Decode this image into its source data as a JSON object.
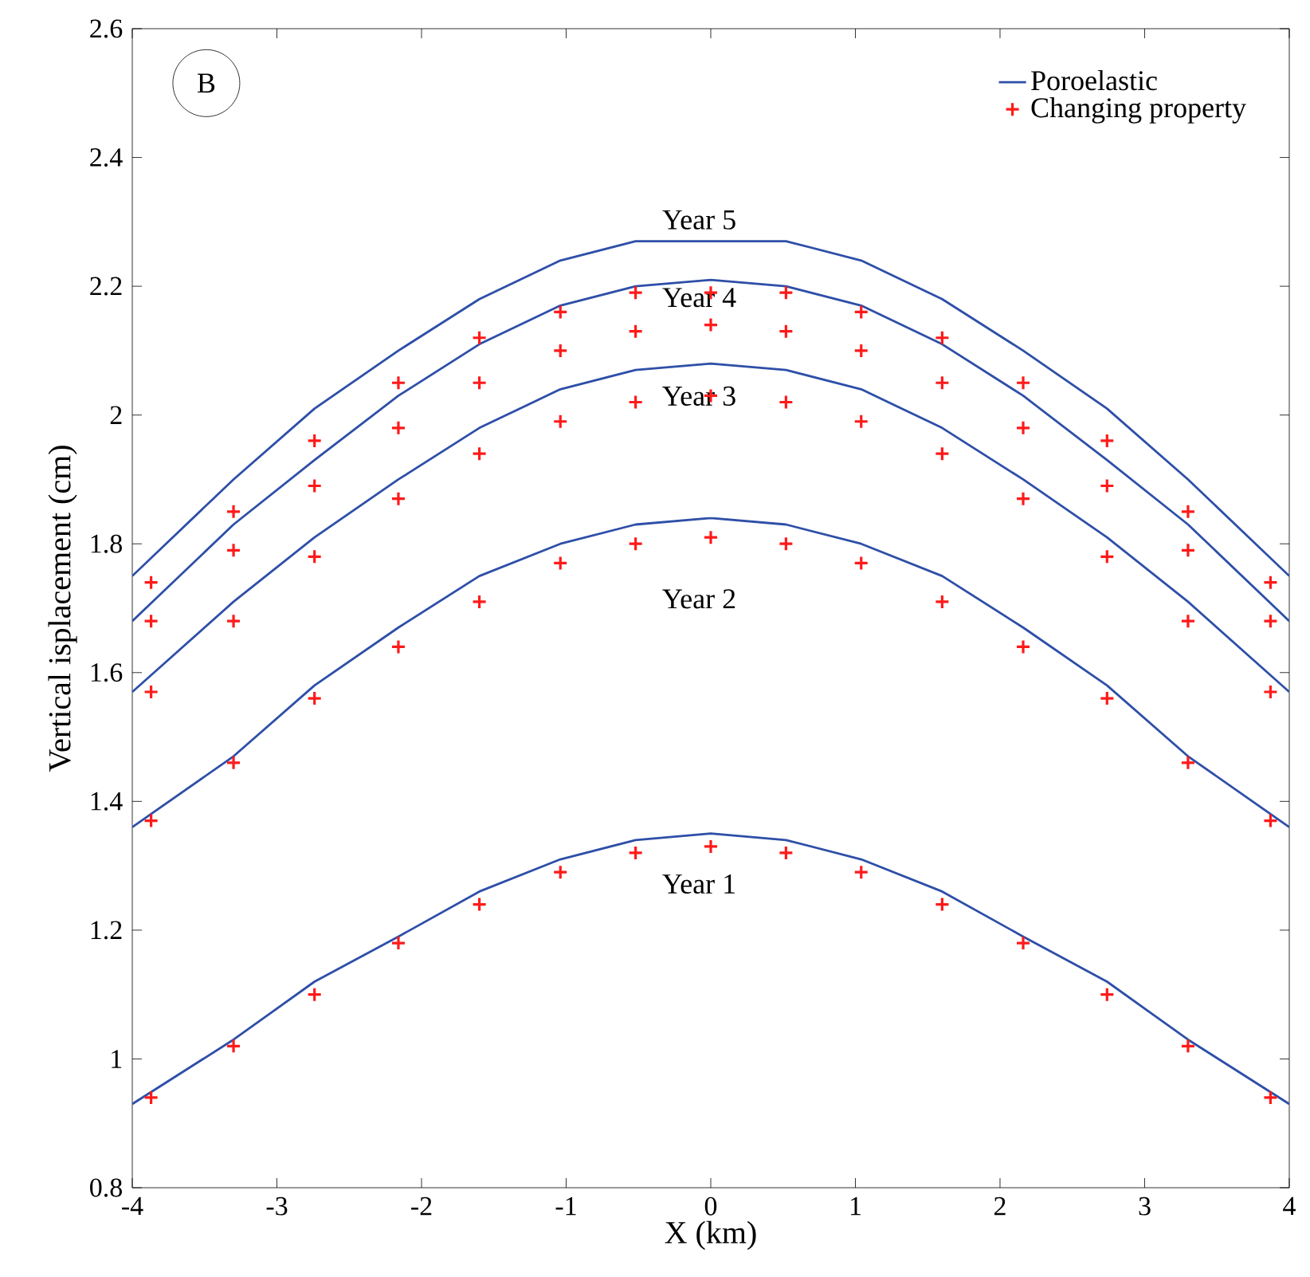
{
  "chart_data": {
    "type": "line",
    "xlabel": "X (km)",
    "ylabel": "Vertical isplacement (cm)",
    "xlim": [
      -4,
      4
    ],
    "xticks": [
      -4,
      -3,
      -2,
      -1,
      0,
      1,
      2,
      3,
      4
    ],
    "ylim": [
      0.8,
      2.6
    ],
    "yticks": [
      0.8,
      1,
      1.2,
      1.4,
      1.6,
      1.8,
      2,
      2.2,
      2.4,
      2.6
    ],
    "legend": "top right",
    "annotations": [
      "B",
      "Year 5",
      "Year 4",
      "Year 3",
      "Year 2",
      "Year 1"
    ],
    "series": [
      {
        "name": "Poroelastic",
        "marker": "none",
        "color": "#2e4fa8",
        "x": [
          -4,
          -3.3,
          -2.74,
          -2.16,
          -1.6,
          -1.04,
          -0.52,
          0,
          0.52,
          1.04,
          1.6,
          2.16,
          2.74,
          3.3,
          4
        ],
        "values": [
          0.93,
          1.03,
          1.12,
          1.19,
          1.26,
          1.31,
          1.34,
          1.35,
          1.34,
          1.31,
          1.26,
          1.19,
          1.12,
          1.03,
          0.93
        ]
      },
      {
        "type": "line",
        "marker": "none",
        "color": "#2e4fa8",
        "x": [
          -4,
          -3.3,
          -2.74,
          -2.16,
          -1.6,
          -1.04,
          -0.52,
          0,
          0.52,
          1.04,
          1.6,
          2.16,
          2.74,
          3.3,
          4
        ],
        "values": [
          1.36,
          1.47,
          1.58,
          1.67,
          1.75,
          1.8,
          1.83,
          1.84,
          1.83,
          1.8,
          1.75,
          1.67,
          1.58,
          1.47,
          1.36
        ]
      },
      {
        "type": "line",
        "marker": "none",
        "color": "#2e4fa8",
        "x": [
          -4,
          -3.3,
          -2.74,
          -2.16,
          -1.6,
          -1.04,
          -0.52,
          0,
          0.52,
          1.04,
          1.6,
          2.16,
          2.74,
          3.3,
          4
        ],
        "values": [
          1.57,
          1.71,
          1.81,
          1.9,
          1.98,
          2.04,
          2.07,
          2.08,
          2.07,
          2.04,
          1.98,
          1.9,
          1.81,
          1.71,
          1.57
        ]
      },
      {
        "type": "line",
        "marker": "none",
        "color": "#2e4fa8",
        "x": [
          -4,
          -3.3,
          -2.74,
          -2.16,
          -1.6,
          -1.04,
          -0.52,
          0,
          0.52,
          1.04,
          1.6,
          2.16,
          2.74,
          3.3,
          4
        ],
        "values": [
          1.68,
          1.83,
          1.93,
          2.03,
          2.11,
          2.17,
          2.2,
          2.21,
          2.2,
          2.17,
          2.11,
          2.03,
          1.93,
          1.83,
          1.68
        ]
      },
      {
        "type": "line",
        "marker": "none",
        "color": "#2e4fa8",
        "x": [
          -4,
          -3.3,
          -2.74,
          -2.16,
          -1.6,
          -1.04,
          -0.52,
          0,
          0.52,
          1.04,
          1.6,
          2.16,
          2.74,
          3.3,
          4
        ],
        "values": [
          1.75,
          1.9,
          2.01,
          2.1,
          2.18,
          2.24,
          2.27,
          2.27,
          2.27,
          2.24,
          2.18,
          2.1,
          2.01,
          1.9,
          1.75
        ]
      },
      {
        "name": "Changing property",
        "type": "scatter",
        "marker": "cross",
        "color": "#ff1a1a",
        "x": [
          -3.87,
          -3.3,
          -2.74,
          -2.16,
          -1.6,
          -1.04,
          -0.52,
          0,
          0.52,
          1.04,
          1.6,
          2.16,
          2.74,
          3.3,
          3.87
        ],
        "values": [
          0.94,
          1.02,
          1.1,
          1.18,
          1.24,
          1.29,
          1.32,
          1.33,
          1.32,
          1.29,
          1.24,
          1.18,
          1.1,
          1.02,
          0.94
        ]
      },
      {
        "type": "scatter",
        "marker": "cross",
        "color": "#ff1a1a",
        "x": [
          -3.87,
          -3.3,
          -2.74,
          -2.16,
          -1.6,
          -1.04,
          -0.52,
          0,
          0.52,
          1.04,
          1.6,
          2.16,
          2.74,
          3.3,
          3.87
        ],
        "values": [
          1.37,
          1.46,
          1.56,
          1.64,
          1.71,
          1.77,
          1.8,
          1.81,
          1.8,
          1.77,
          1.71,
          1.64,
          1.56,
          1.46,
          1.37
        ]
      },
      {
        "type": "scatter",
        "marker": "cross",
        "color": "#ff1a1a",
        "x": [
          -3.87,
          -3.3,
          -2.74,
          -2.16,
          -1.6,
          -1.04,
          -0.52,
          0,
          0.52,
          1.04,
          1.6,
          2.16,
          2.74,
          3.3,
          3.87
        ],
        "values": [
          1.57,
          1.68,
          1.78,
          1.87,
          1.94,
          1.99,
          2.02,
          2.03,
          2.02,
          1.99,
          1.94,
          1.87,
          1.78,
          1.68,
          1.57
        ]
      },
      {
        "type": "scatter",
        "marker": "cross",
        "color": "#ff1a1a",
        "x": [
          -3.87,
          -3.3,
          -2.74,
          -2.16,
          -1.6,
          -1.04,
          -0.52,
          0,
          0.52,
          1.04,
          1.6,
          2.16,
          2.74,
          3.3,
          3.87
        ],
        "values": [
          1.68,
          1.79,
          1.89,
          1.98,
          2.05,
          2.1,
          2.13,
          2.14,
          2.13,
          2.1,
          2.05,
          1.98,
          1.89,
          1.79,
          1.68
        ]
      },
      {
        "type": "scatter",
        "marker": "cross",
        "color": "#ff1a1a",
        "x": [
          -3.87,
          -3.3,
          -2.74,
          -2.16,
          -1.6,
          -1.04,
          -0.52,
          0,
          0.52,
          1.04,
          1.6,
          2.16,
          2.74,
          3.3,
          3.87
        ],
        "values": [
          1.74,
          1.85,
          1.96,
          2.05,
          2.12,
          2.16,
          2.19,
          2.19,
          2.19,
          2.16,
          2.12,
          2.05,
          1.96,
          1.85,
          1.74
        ]
      }
    ]
  }
}
